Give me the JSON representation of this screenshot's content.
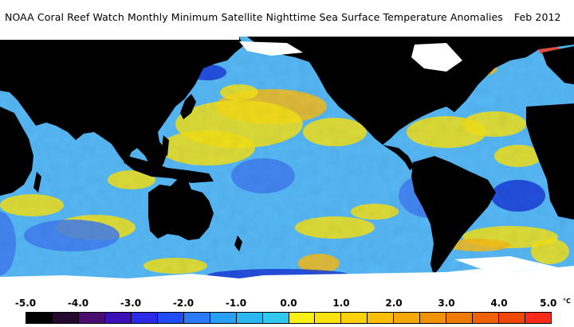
{
  "header": {
    "title": "NOAA Coral Reef Watch Monthly Minimum Satellite Nighttime Sea Surface Temperature Anomalies",
    "date": "Feb 2012"
  },
  "map": {
    "ocean_palette": {
      "cold": "#1a3cd8",
      "cool": "#3f7bf0",
      "neutral": "#56b8f5",
      "mild": "#f3e018",
      "warm": "#f6bb19",
      "hot": "#ff3c1e",
      "land": "#000000",
      "ice": "#ffffff"
    }
  },
  "legend": {
    "tick_labels": [
      "-5.0",
      "-4.0",
      "-3.0",
      "-2.0",
      "-1.0",
      "0.0",
      "1.0",
      "2.0",
      "3.0",
      "4.0",
      "5.0"
    ],
    "unit": "°C",
    "colors": [
      "#000000",
      "#240a2e",
      "#4a0e6e",
      "#3b10b8",
      "#2a2ae8",
      "#1f4cf7",
      "#2b7af8",
      "#2aa0f5",
      "#2bb8f0",
      "#30c8ec",
      "#f7f012",
      "#fbe20e",
      "#fbd20b",
      "#fbbf0a",
      "#f7a808",
      "#f29208",
      "#ef7a06",
      "#ee6106",
      "#ee4708",
      "#ff2b1a"
    ]
  }
}
